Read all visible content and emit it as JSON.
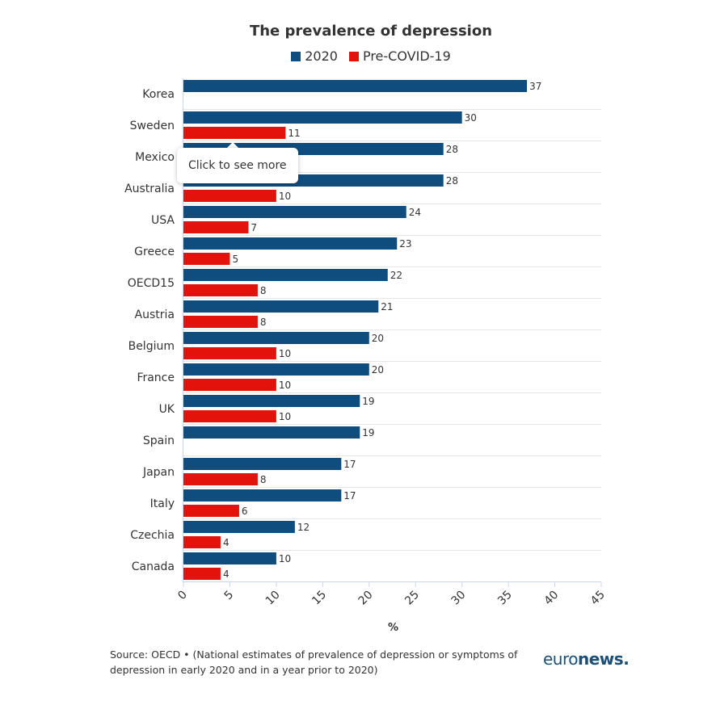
{
  "colors": {
    "series_2020": "#0e4d7e",
    "series_pre": "#e3120b",
    "grid": "#e6e6e6"
  },
  "tooltip": {
    "text": "Click to see more"
  },
  "source": "Source: OECD • (National estimates of prevalence of depression or symptoms of depression in early 2020 and in a year prior to 2020)",
  "logo": {
    "part1": "euro",
    "part2": "news",
    "dot": "."
  },
  "chart_data": {
    "type": "bar",
    "orientation": "horizontal",
    "title": "The prevalence of depression",
    "xlabel": "%",
    "ylabel": "",
    "xlim": [
      0,
      45
    ],
    "ticks": [
      0,
      5,
      10,
      15,
      20,
      25,
      30,
      35,
      40,
      45
    ],
    "legend_position": "top-center",
    "categories": [
      "Korea",
      "Sweden",
      "Mexico",
      "Australia",
      "USA",
      "Greece",
      "OECD15",
      "Austria",
      "Belgium",
      "France",
      "UK",
      "Spain",
      "Japan",
      "Italy",
      "Czechia",
      "Canada"
    ],
    "series": [
      {
        "name": "2020",
        "color": "#0e4d7e",
        "values": [
          37,
          30,
          28,
          28,
          24,
          23,
          22,
          21,
          20,
          20,
          19,
          19,
          17,
          17,
          12,
          10
        ]
      },
      {
        "name": "Pre-COVID-19",
        "color": "#e3120b",
        "values": [
          null,
          11,
          null,
          10,
          7,
          5,
          8,
          8,
          10,
          10,
          10,
          null,
          8,
          6,
          4,
          4
        ]
      }
    ]
  }
}
